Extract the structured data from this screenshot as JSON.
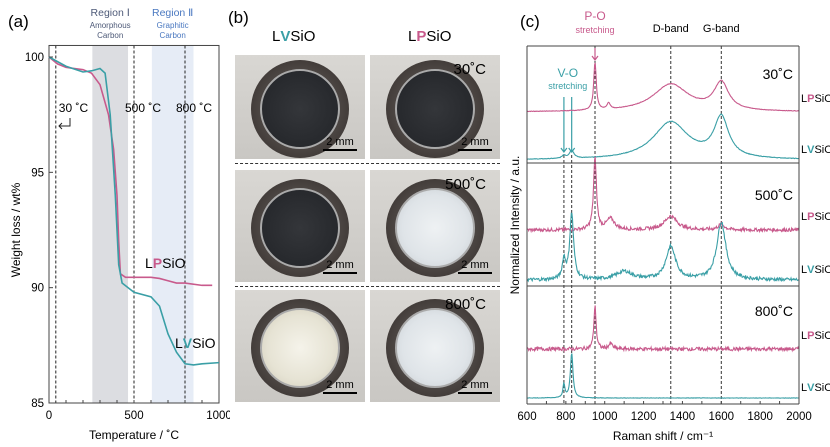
{
  "colors": {
    "LVSiO": "#3a9fa6",
    "LPSiO": "#c85a8c",
    "region1": "#dcdde1",
    "region2": "#e6ecf6"
  },
  "panel_labels": {
    "a": "(a)",
    "b": "(b)",
    "c": "(c)"
  },
  "chart_data": [
    {
      "type": "line",
      "panel": "(a)",
      "xlabel": "Temperature / ˚C",
      "ylabel": "Weight loss / wt%",
      "xlim": [
        0,
        1000
      ],
      "ylim": [
        85,
        100.5
      ],
      "xticks": [
        "0",
        "500",
        "1000"
      ],
      "yticks": [
        "85",
        "90",
        "95",
        "100"
      ],
      "regions": [
        {
          "title": "Region Ⅰ",
          "subtitle": "Amorphous",
          "subtitle2": "Carbon",
          "range": [
            255,
            465
          ]
        },
        {
          "title": "Region Ⅱ",
          "subtitle": "Graphitic",
          "subtitle2": "Carbon",
          "range": [
            605,
            850
          ]
        }
      ],
      "markers": [
        {
          "x": 40,
          "label": "30 ˚C"
        },
        {
          "x": 500,
          "label": "500 ˚C"
        },
        {
          "x": 800,
          "label": "800 ˚C"
        }
      ],
      "series": [
        {
          "name": "LPSiO",
          "name_parts": [
            "L",
            "P",
            "SiO"
          ],
          "x": [
            0,
            50,
            100,
            200,
            250,
            300,
            350,
            380,
            400,
            410,
            420,
            450,
            600,
            650,
            700,
            750,
            800,
            900,
            960
          ],
          "y": [
            100,
            99.7,
            99.55,
            99.45,
            99.3,
            98.8,
            97.5,
            96,
            94,
            92,
            90.6,
            90.45,
            90.45,
            90.4,
            90.3,
            90.2,
            90.2,
            90.1,
            90.1
          ]
        },
        {
          "name": "LVSiO",
          "name_parts": [
            "L",
            "V",
            "SiO"
          ],
          "x": [
            0,
            50,
            100,
            200,
            250,
            300,
            330,
            360,
            390,
            410,
            430,
            500,
            600,
            650,
            700,
            750,
            800,
            850,
            900,
            1000
          ],
          "y": [
            100,
            99.8,
            99.6,
            99.35,
            99.4,
            99.5,
            99.3,
            97.5,
            94,
            91,
            90.2,
            89.8,
            89.6,
            89.2,
            88,
            87.2,
            86.7,
            86.65,
            86.7,
            86.75
          ]
        }
      ]
    },
    {
      "type": "line",
      "panel": "(c)",
      "xlabel": "Raman shift / cm⁻¹",
      "ylabel": "Normalized Intensity / a.u.",
      "xlim": [
        600,
        2000
      ],
      "xticks": [
        "600",
        "800",
        "1000",
        "1200",
        "1400",
        "1600",
        "1800",
        "2000"
      ],
      "annotations": {
        "po": "P-O",
        "po_sub": "stretching",
        "vo": "V-O",
        "vo_sub": "stretching",
        "d": "D-band",
        "g": "G-band"
      },
      "reference_lines": [
        790,
        830,
        950,
        1340,
        1600
      ],
      "panels": [
        {
          "temp": "30˚C",
          "traces": [
            {
              "name": "LPSiO",
              "peaks": [
                [
                  950,
                  0.95,
                  8
                ],
                [
                  1020,
                  0.12,
                  10
                ],
                [
                  1340,
                  0.55,
                  110
                ],
                [
                  1600,
                  0.55,
                  45
                ]
              ],
              "noise": 0.005
            },
            {
              "name": "LVSiO",
              "peaks": [
                [
                  790,
                  0.06,
                  12
                ],
                [
                  830,
                  0.16,
                  14
                ],
                [
                  1340,
                  0.75,
                  110
                ],
                [
                  1600,
                  0.8,
                  45
                ]
              ],
              "noise": 0.005
            }
          ]
        },
        {
          "temp": "500˚C",
          "traces": [
            {
              "name": "LPSiO",
              "peaks": [
                [
                  950,
                  1.3,
                  9
                ],
                [
                  1030,
                  0.2,
                  25
                ],
                [
                  1340,
                  0.25,
                  40
                ],
                [
                  1600,
                  0.1,
                  20
                ]
              ],
              "noise": 0.03
            },
            {
              "name": "LVSiO",
              "peaks": [
                [
                  790,
                  0.35,
                  10
                ],
                [
                  830,
                  1.2,
                  12
                ],
                [
                  1100,
                  0.15,
                  50
                ],
                [
                  1340,
                  0.6,
                  30
                ],
                [
                  1600,
                  1.05,
                  28
                ]
              ],
              "noise": 0.03
            }
          ]
        },
        {
          "temp": "800˚C",
          "traces": [
            {
              "name": "LPSiO",
              "peaks": [
                [
                  950,
                  0.95,
                  7
                ],
                [
                  1030,
                  0.12,
                  12
                ]
              ],
              "noise": 0.04
            },
            {
              "name": "LVSiO",
              "peaks": [
                [
                  790,
                  0.3,
                  6
                ],
                [
                  830,
                  1.0,
                  8
                ]
              ],
              "noise": 0.005
            }
          ]
        }
      ]
    }
  ],
  "photos": {
    "columns": [
      {
        "name_parts": [
          "L",
          "V",
          "SiO"
        ]
      },
      {
        "name_parts": [
          "L",
          "P",
          "SiO"
        ]
      }
    ],
    "rows": [
      {
        "temp": "30˚C"
      },
      {
        "temp": "500˚C"
      },
      {
        "temp": "800˚C"
      }
    ],
    "scale_bar": "2 mm"
  }
}
